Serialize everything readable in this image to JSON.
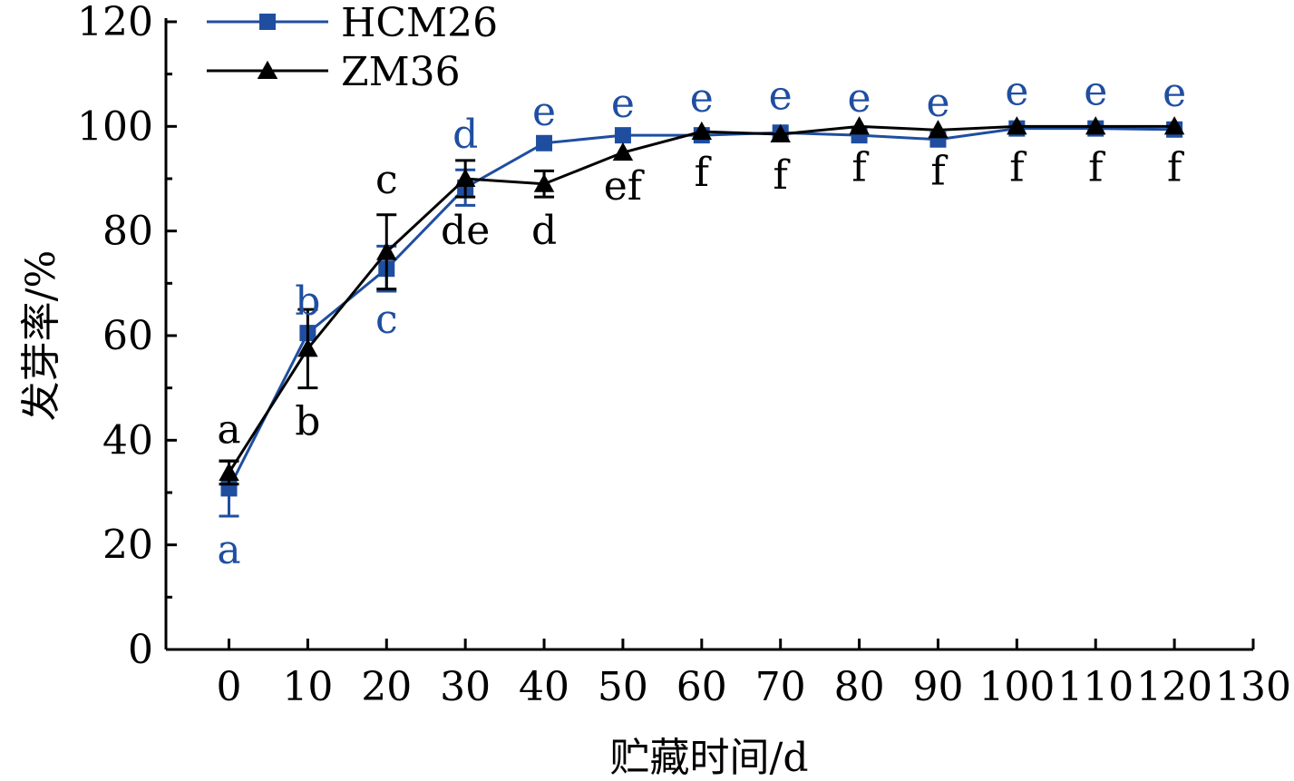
{
  "chart_data": {
    "type": "line",
    "xlabel": "贮藏时间/d",
    "ylabel": "发芽率/%",
    "xlim": [
      -8,
      130
    ],
    "ylim": [
      0,
      120
    ],
    "xticks": [
      0,
      10,
      20,
      30,
      40,
      50,
      60,
      70,
      80,
      90,
      100,
      110,
      120,
      130
    ],
    "yticks": [
      0,
      20,
      40,
      60,
      80,
      100,
      120
    ],
    "legend_position": "top-left",
    "x": [
      0,
      10,
      20,
      30,
      40,
      50,
      60,
      70,
      80,
      90,
      100,
      110,
      120
    ],
    "series": [
      {
        "name": "HCM26",
        "color": "#1f4ea1",
        "marker": "square",
        "values": [
          30.8,
          60.5,
          72.8,
          88.3,
          96.8,
          98.3,
          98.3,
          98.8,
          98.3,
          97.5,
          99.6,
          99.6,
          99.4
        ],
        "errors": [
          5.3,
          0,
          4.3,
          3.4,
          0,
          0,
          0,
          0,
          0,
          0,
          0,
          0,
          0
        ],
        "letters": [
          "a",
          "b",
          "c",
          "d",
          "e",
          "e",
          "e",
          "e",
          "e",
          "e",
          "e",
          "e",
          "e"
        ]
      },
      {
        "name": "ZM36",
        "color": "#000000",
        "marker": "triangle",
        "values": [
          33.8,
          57.5,
          76.0,
          90.0,
          89.0,
          95.0,
          99.0,
          98.5,
          100.0,
          99.3,
          100.0,
          100.0,
          100.0
        ],
        "errors": [
          2.2,
          7.5,
          7.1,
          3.5,
          2.5,
          0,
          0,
          0,
          0,
          0,
          0,
          0,
          0
        ],
        "letters": [
          "a",
          "b",
          "c",
          "de",
          "d",
          "ef",
          "f",
          "f",
          "f",
          "f",
          "f",
          "f",
          "f"
        ]
      }
    ]
  }
}
